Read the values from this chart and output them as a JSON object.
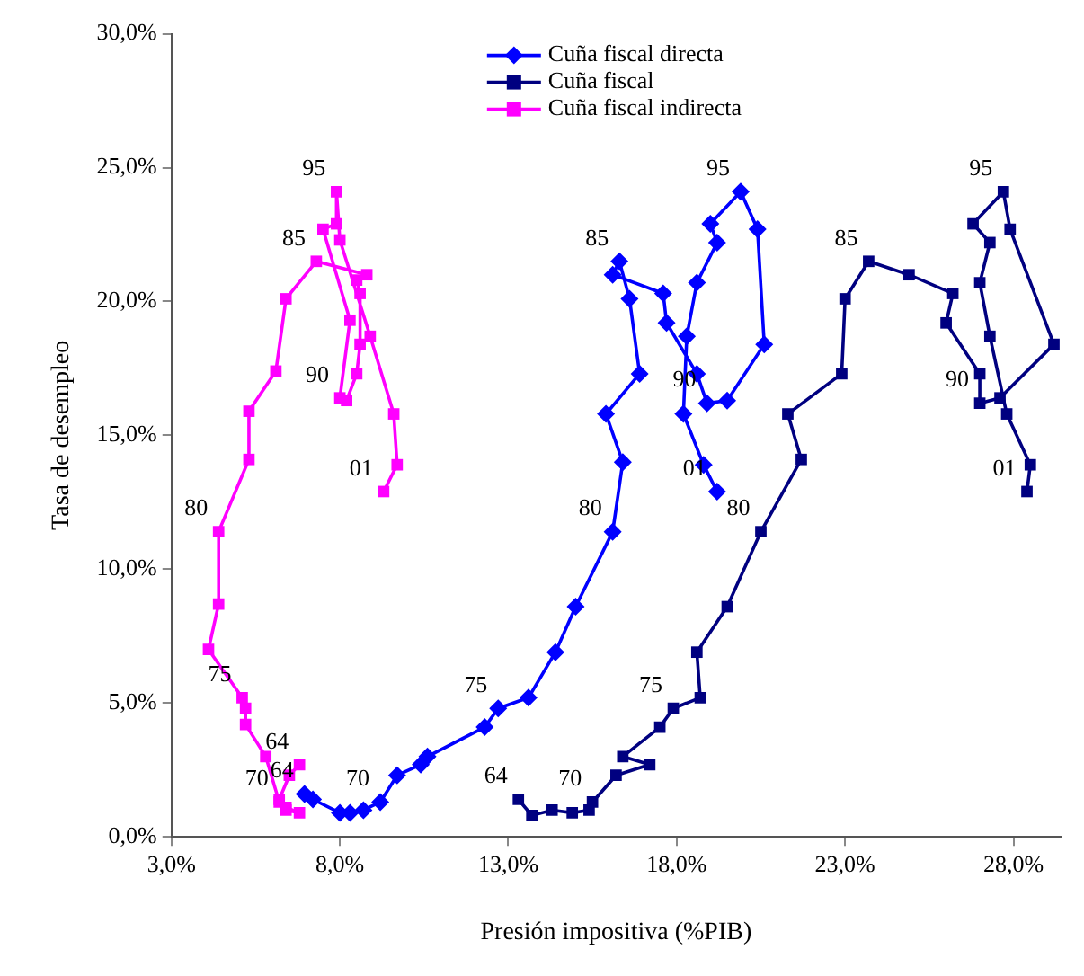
{
  "chart_data": {
    "type": "line",
    "xlabel": "Presión impositiva (%PIB)",
    "ylabel": "Tasa de desempleo",
    "xlim": [
      3,
      29.4
    ],
    "ylim": [
      0,
      30
    ],
    "xticks": [
      {
        "value": 3,
        "label": "3,0%"
      },
      {
        "value": 8,
        "label": "8,0%"
      },
      {
        "value": 13,
        "label": "13,0%"
      },
      {
        "value": 18,
        "label": "18,0%"
      },
      {
        "value": 23,
        "label": "23,0%"
      },
      {
        "value": 28,
        "label": "28,0%"
      }
    ],
    "yticks": [
      {
        "value": 0,
        "label": "0,0%"
      },
      {
        "value": 5,
        "label": "5,0%"
      },
      {
        "value": 10,
        "label": "10,0%"
      },
      {
        "value": 15,
        "label": "15,0%"
      },
      {
        "value": 20,
        "label": "20,0%"
      },
      {
        "value": 25,
        "label": "25,0%"
      },
      {
        "value": 30,
        "label": "30,0%"
      }
    ],
    "grid": false,
    "legend": "top",
    "line_style": "solid",
    "series": [
      {
        "name": "Cuña fiscal directa",
        "color": "#0000ff",
        "marker": "diamond",
        "x": [
          6.95,
          7.2,
          8.0,
          8.3,
          8.7,
          9.2,
          9.7,
          10.4,
          10.6,
          12.3,
          12.7,
          13.6,
          14.4,
          15.0,
          16.1,
          16.4,
          15.9,
          16.9,
          16.6,
          16.3,
          16.1,
          17.6,
          17.7,
          18.6,
          18.9,
          19.5,
          20.6,
          20.4,
          19.9,
          19.0,
          19.2,
          18.6,
          18.3,
          18.2,
          18.8,
          19.2
        ],
        "values": [
          1.6,
          1.4,
          0.9,
          0.9,
          1.0,
          1.3,
          2.3,
          2.7,
          3.0,
          4.1,
          4.8,
          5.2,
          6.9,
          8.6,
          11.4,
          14.0,
          15.8,
          17.3,
          20.1,
          21.5,
          21.0,
          20.3,
          19.2,
          17.3,
          16.2,
          16.3,
          18.4,
          22.7,
          24.1,
          22.9,
          22.2,
          20.7,
          18.7,
          15.8,
          13.9,
          12.9
        ]
      },
      {
        "name": "Cuña fiscal",
        "color": "#000080",
        "marker": "square",
        "x": [
          13.3,
          13.7,
          14.3,
          14.9,
          15.4,
          15.5,
          16.2,
          17.2,
          16.4,
          17.5,
          17.9,
          18.7,
          18.6,
          19.5,
          20.5,
          21.7,
          21.3,
          22.9,
          23.0,
          23.7,
          24.9,
          26.2,
          26.0,
          27.0,
          27.0,
          27.6,
          29.2,
          27.9,
          27.7,
          26.8,
          27.3,
          27.0,
          27.3,
          27.8,
          28.5,
          28.4
        ],
        "values": [
          1.4,
          0.8,
          1.0,
          0.9,
          1.0,
          1.3,
          2.3,
          2.7,
          3.0,
          4.1,
          4.8,
          5.2,
          6.9,
          8.6,
          11.4,
          14.1,
          15.8,
          17.3,
          20.1,
          21.5,
          21.0,
          20.3,
          19.2,
          17.3,
          16.2,
          16.4,
          18.4,
          22.7,
          24.1,
          22.9,
          22.2,
          20.7,
          18.7,
          15.8,
          13.9,
          12.9
        ]
      },
      {
        "name": "Cuña fiscal indirecta",
        "color": "#ff00ff",
        "marker": "square",
        "x": [
          6.8,
          6.5,
          6.2,
          6.4,
          6.8,
          6.4,
          6.2,
          5.8,
          5.2,
          5.2,
          5.1,
          4.1,
          4.4,
          4.4,
          5.3,
          5.3,
          6.1,
          6.4,
          7.3,
          8.8,
          8.5,
          8.6,
          8.6,
          8.5,
          8.2,
          8.0,
          8.3,
          7.5,
          7.9,
          7.9,
          8.0,
          8.9,
          9.6,
          9.7,
          9.3
        ],
        "values": [
          2.7,
          2.3,
          1.4,
          1.0,
          0.9,
          1.1,
          1.3,
          3.0,
          4.2,
          4.8,
          5.2,
          7.0,
          8.7,
          11.4,
          14.1,
          15.9,
          17.4,
          20.1,
          21.5,
          21.0,
          20.8,
          20.3,
          18.4,
          17.3,
          16.3,
          16.4,
          19.3,
          22.7,
          22.9,
          24.1,
          22.3,
          18.7,
          15.8,
          13.9,
          12.9
        ]
      }
    ],
    "annotations": [
      {
        "text": "95",
        "x": 7.9,
        "y": 24.1
      },
      {
        "text": "85",
        "x": 7.3,
        "y": 21.5
      },
      {
        "text": "90",
        "x": 8.0,
        "y": 16.4
      },
      {
        "text": "80",
        "x": 4.4,
        "y": 11.4
      },
      {
        "text": "01",
        "x": 9.3,
        "y": 12.9
      },
      {
        "text": "75",
        "x": 5.1,
        "y": 5.2
      },
      {
        "text": "64",
        "x": 6.8,
        "y": 2.7
      },
      {
        "text": "70",
        "x": 6.2,
        "y": 1.3
      },
      {
        "text": "64",
        "x": 6.95,
        "y": 1.6
      },
      {
        "text": "70",
        "x": 9.2,
        "y": 1.3
      },
      {
        "text": "75",
        "x": 12.7,
        "y": 4.8
      },
      {
        "text": "80",
        "x": 16.1,
        "y": 11.4
      },
      {
        "text": "85",
        "x": 16.3,
        "y": 21.5
      },
      {
        "text": "90",
        "x": 18.9,
        "y": 16.2
      },
      {
        "text": "95",
        "x": 19.9,
        "y": 24.1
      },
      {
        "text": "01",
        "x": 19.2,
        "y": 12.9
      },
      {
        "text": "64",
        "x": 13.3,
        "y": 1.4
      },
      {
        "text": "70",
        "x": 15.5,
        "y": 1.3
      },
      {
        "text": "75",
        "x": 17.9,
        "y": 4.8
      },
      {
        "text": "80",
        "x": 20.5,
        "y": 11.4
      },
      {
        "text": "85",
        "x": 23.7,
        "y": 21.5
      },
      {
        "text": "90",
        "x": 27.0,
        "y": 16.2
      },
      {
        "text": "95",
        "x": 27.7,
        "y": 24.1
      },
      {
        "text": "01",
        "x": 28.4,
        "y": 12.9
      }
    ]
  }
}
